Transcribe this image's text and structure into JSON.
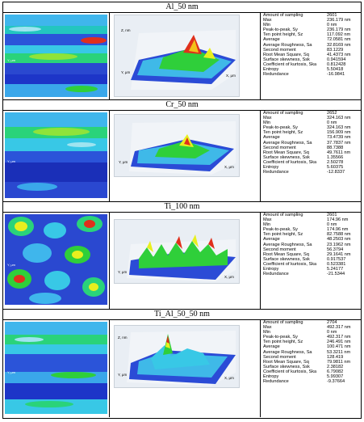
{
  "sections": [
    {
      "title": "Al_50 nm",
      "stats": [
        {
          "label": "Amount of sampling",
          "value": "2601"
        },
        {
          "label": "Max",
          "value": "236.179 nm"
        },
        {
          "label": "Min",
          "value": "0 nm"
        },
        {
          "label": "Peak-to-peak, Sy",
          "value": "236.179 nm"
        },
        {
          "label": "Ten point height, Sz",
          "value": "117.092 nm"
        },
        {
          "label": "Average",
          "value": "72.0581 nm"
        },
        {
          "label": "Average Roughness, Sa",
          "value": "32.8169 nm"
        },
        {
          "label": "Second moment",
          "value": "83.1229"
        },
        {
          "label": "Root Mean Square, Sq",
          "value": "41.4373 nm"
        },
        {
          "label": "Surface skewness, Ssk",
          "value": "0.941594"
        },
        {
          "label": "Coefficient of kurtosis, Ska",
          "value": "0.812428"
        },
        {
          "label": "Entropy",
          "value": "5.50418"
        },
        {
          "label": "Redundance",
          "value": "-16.9841"
        }
      ]
    },
    {
      "title": "Cr_50 nm",
      "stats": [
        {
          "label": "Amount of sampling",
          "value": "2652"
        },
        {
          "label": "Max",
          "value": "324.163 nm"
        },
        {
          "label": "Min",
          "value": "0 nm"
        },
        {
          "label": "Peak-to-peak, Sy",
          "value": "324.163 nm"
        },
        {
          "label": "Ten point height, Sz",
          "value": "156.909 nm"
        },
        {
          "label": "Average",
          "value": "73.4739 nm"
        },
        {
          "label": "Average Roughness, Sa",
          "value": "37.7837 nm"
        },
        {
          "label": "Second moment",
          "value": "88.7388"
        },
        {
          "label": "Root Mean Square, Sq",
          "value": "49.7611 nm"
        },
        {
          "label": "Surface skewness, Ssk",
          "value": "1.35566"
        },
        {
          "label": "Coefficient of kurtosis, Ska",
          "value": "2.50278"
        },
        {
          "label": "Entropy",
          "value": "5.60375"
        },
        {
          "label": "Redundance",
          "value": "-12.8337"
        }
      ]
    },
    {
      "title": "Ti_100 nm",
      "stats": [
        {
          "label": "Amount of sampling",
          "value": "2601"
        },
        {
          "label": "Max",
          "value": "174.96 nm"
        },
        {
          "label": "Min",
          "value": "0 nm"
        },
        {
          "label": "Peak-to-peak, Sy",
          "value": "174.96 nm"
        },
        {
          "label": "Ten point height, Sz",
          "value": "82.7588 nm"
        },
        {
          "label": "Average",
          "value": "48.2503 nm"
        },
        {
          "label": "Average Roughness, Sa",
          "value": "23.1962 nm"
        },
        {
          "label": "Second moment",
          "value": "56.3794"
        },
        {
          "label": "Root Mean Square, Sq",
          "value": "29.1641 nm"
        },
        {
          "label": "Surface skewness, Ssk",
          "value": "0.917537"
        },
        {
          "label": "Coefficient of kurtosis, Ska",
          "value": "0.523381"
        },
        {
          "label": "Entropy",
          "value": "5.24177"
        },
        {
          "label": "Redundance",
          "value": "-21.5344"
        }
      ]
    },
    {
      "title": "Ti_Al_50_50 nm",
      "stats": [
        {
          "label": "Amount of sampling",
          "value": "2704"
        },
        {
          "label": "Max",
          "value": "492.317 nm"
        },
        {
          "label": "Min",
          "value": "0 nm"
        },
        {
          "label": "Peak-to-peak, Sy",
          "value": "492.317 nm"
        },
        {
          "label": "Ten point height, Sz",
          "value": "246.491 nm"
        },
        {
          "label": "Average",
          "value": "100.471 nm"
        },
        {
          "label": "Average Roughness, Sa",
          "value": "53.3211 nm"
        },
        {
          "label": "Second moment",
          "value": "128.419"
        },
        {
          "label": "Root Mean Square, Sq",
          "value": "79.9811 nm"
        },
        {
          "label": "Surface skewness, Ssk",
          "value": "2.38182"
        },
        {
          "label": "Coefficient of kurtosis, Ska",
          "value": "6.79082"
        },
        {
          "label": "Entropy",
          "value": "5.99307"
        },
        {
          "label": "Redundance",
          "value": "-9.37664"
        }
      ]
    }
  ],
  "plot_axis_labels": {
    "z": "Z, nm",
    "y": "Y, μm",
    "x": "X, μm"
  },
  "colors": {
    "low": "#1d35c8",
    "mid": "#38c8e6",
    "green": "#2fcf3a",
    "high": "#e8ef1e",
    "peak": "#e0301c"
  }
}
